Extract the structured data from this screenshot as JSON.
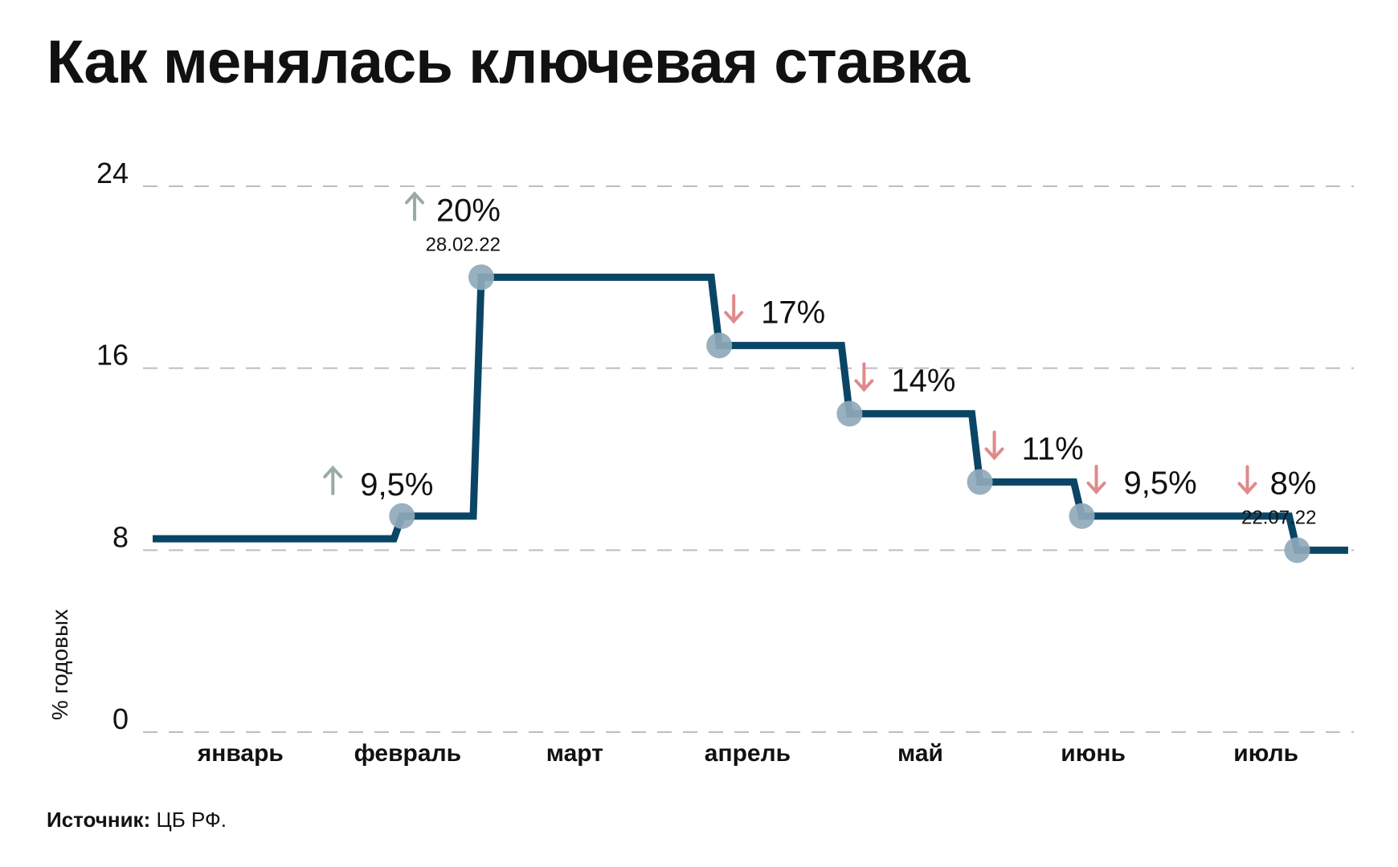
{
  "chart_data": {
    "type": "line",
    "title": "Как менялась ключевая ставка",
    "ylabel": "% годовых",
    "xlabel": "",
    "ylim": [
      0,
      24
    ],
    "yticks": [
      0,
      8,
      16,
      24
    ],
    "categories": [
      "январь",
      "февраль",
      "март",
      "апрель",
      "май",
      "июнь",
      "июль"
    ],
    "series": [
      {
        "step": true,
        "points": [
          {
            "date": "2022-01-01",
            "y": 8.5
          },
          {
            "date": "2022-02-14",
            "y": 9.5
          },
          {
            "date": "2022-02-28",
            "y": 20
          },
          {
            "date": "2022-04-11",
            "y": 17
          },
          {
            "date": "2022-05-04",
            "y": 14
          },
          {
            "date": "2022-05-27",
            "y": 11
          },
          {
            "date": "2022-06-14",
            "y": 9.5
          },
          {
            "date": "2022-07-22",
            "y": 8
          },
          {
            "date": "2022-07-31",
            "y": 8
          }
        ]
      }
    ],
    "annotations": [
      {
        "date": "2022-02-14",
        "y": 9.5,
        "label": "9,5%",
        "direction": "up",
        "sublabel": ""
      },
      {
        "date": "2022-02-28",
        "y": 20,
        "label": "20%",
        "direction": "up",
        "sublabel": "28.02.22"
      },
      {
        "date": "2022-04-11",
        "y": 17,
        "label": "17%",
        "direction": "down",
        "sublabel": ""
      },
      {
        "date": "2022-05-04",
        "y": 14,
        "label": "14%",
        "direction": "down",
        "sublabel": ""
      },
      {
        "date": "2022-05-27",
        "y": 11,
        "label": "11%",
        "direction": "down",
        "sublabel": ""
      },
      {
        "date": "2022-06-14",
        "y": 9.5,
        "label": "9,5%",
        "direction": "down",
        "sublabel": ""
      },
      {
        "date": "2022-07-22",
        "y": 8,
        "label": "8%",
        "direction": "down",
        "sublabel": "22.07.22"
      }
    ],
    "grid": true,
    "legend": "none"
  },
  "colors": {
    "line": "#0b4566",
    "marker": "#8fa9ba",
    "up_arrow": "#9aaaa6",
    "down_arrow": "#e0898c",
    "grid": "#bdbdbd"
  },
  "source": {
    "label": "Источник:",
    "text": "ЦБ РФ."
  }
}
